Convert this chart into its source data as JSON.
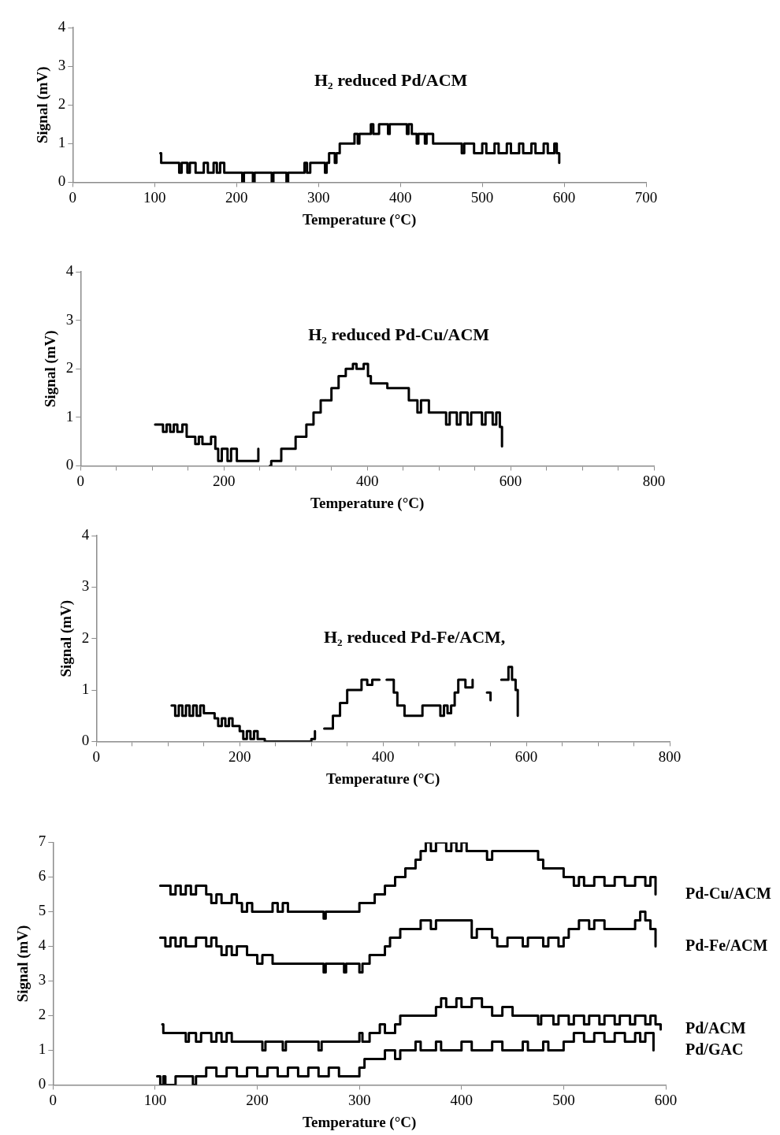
{
  "chart_data": [
    {
      "type": "step",
      "title": "H₂ reduced Pd/ACM",
      "xlabel": "Temperature (°C)",
      "ylabel": "Signal (mV)",
      "color": "#000000",
      "marker": "none",
      "grid": false,
      "legend": false,
      "xlim": [
        0,
        700
      ],
      "xticks": [
        0,
        100,
        200,
        300,
        400,
        500,
        600,
        700
      ],
      "ylim": [
        0,
        4
      ],
      "yticks": [
        0,
        1,
        2,
        3,
        4
      ],
      "x": [
        107,
        108,
        130,
        133,
        140,
        143,
        150,
        160,
        165,
        172,
        176,
        180,
        185,
        207,
        209,
        220,
        222,
        243,
        245,
        261,
        263,
        283,
        286,
        290,
        308,
        310,
        313,
        320,
        322,
        326,
        344,
        348,
        350,
        364,
        367,
        374,
        385,
        387,
        408,
        410,
        414,
        420,
        422,
        430,
        432,
        440,
        475,
        478,
        490,
        500,
        505,
        515,
        520,
        530,
        535,
        545,
        550,
        560,
        565,
        575,
        580,
        588,
        591,
        594
      ],
      "values": [
        0.75,
        0.5,
        0.25,
        0.5,
        0.25,
        0.5,
        0.25,
        0.5,
        0.25,
        0.5,
        0.25,
        0.5,
        0.25,
        0,
        0.25,
        0,
        0.25,
        0,
        0.25,
        0,
        0.25,
        0.5,
        0.25,
        0.5,
        0.25,
        0.5,
        0.75,
        0.5,
        0.75,
        1.0,
        1.25,
        1.0,
        1.25,
        1.5,
        1.25,
        1.5,
        1.25,
        1.5,
        1.25,
        1.5,
        1.25,
        1.0,
        1.25,
        1.0,
        1.25,
        1.0,
        0.75,
        1.0,
        0.75,
        1.0,
        0.75,
        1.0,
        0.75,
        1.0,
        0.75,
        1.0,
        0.75,
        1.0,
        0.75,
        1.0,
        0.75,
        1.0,
        0.75,
        0.5
      ]
    },
    {
      "type": "step",
      "title": "H₂ reduced Pd-Cu/ACM",
      "xlabel": "Temperature (°C)",
      "ylabel": "Signal (mV)",
      "color": "#000000",
      "marker": "none",
      "grid": false,
      "legend": false,
      "xlim": [
        0,
        800
      ],
      "xticks": [
        0,
        {
          "value": 50,
          "label": null
        },
        {
          "value": 100,
          "label": null
        },
        {
          "value": 150,
          "label": null
        },
        200,
        {
          "value": 250,
          "label": null
        },
        {
          "value": 300,
          "label": null
        },
        {
          "value": 350,
          "label": null
        },
        400,
        {
          "value": 450,
          "label": null
        },
        {
          "value": 500,
          "label": null
        },
        {
          "value": 550,
          "label": null
        },
        600,
        {
          "value": 650,
          "label": null
        },
        {
          "value": 700,
          "label": null
        },
        {
          "value": 750,
          "label": null
        },
        800
      ],
      "ylim": [
        0,
        4
      ],
      "yticks": [
        0,
        1,
        2,
        3,
        4
      ],
      "x": [
        104,
        115,
        120,
        125,
        130,
        135,
        142,
        148,
        160,
        165,
        170,
        182,
        188,
        192,
        197,
        205,
        210,
        218,
        240,
        248,
        250,
        264,
        266,
        268,
        280,
        291,
        300,
        315,
        325,
        335,
        350,
        360,
        370,
        380,
        385,
        395,
        401,
        405,
        428,
        432,
        458,
        463,
        470,
        475,
        486,
        510,
        515,
        525,
        530,
        540,
        545,
        560,
        565,
        575,
        580,
        585,
        588
      ],
      "values": [
        0.85,
        0.7,
        0.85,
        0.7,
        0.85,
        0.7,
        0.85,
        0.6,
        0.45,
        0.6,
        0.45,
        0.6,
        0.35,
        0.1,
        0.35,
        0.1,
        0.35,
        0.1,
        0.1,
        0.35,
        null,
        0.0,
        0.1,
        0.1,
        0.35,
        0.35,
        0.6,
        0.85,
        1.1,
        1.35,
        1.6,
        1.85,
        2.0,
        2.1,
        2.0,
        2.1,
        1.85,
        1.7,
        1.6,
        1.6,
        1.35,
        1.35,
        1.1,
        1.35,
        1.1,
        0.85,
        1.1,
        0.85,
        1.1,
        0.85,
        1.1,
        0.85,
        1.1,
        0.85,
        1.1,
        0.8,
        0.4
      ]
    },
    {
      "type": "step",
      "title": "H₂ reduced Pd-Fe/ACM,",
      "xlabel": "Temperature (°C)",
      "ylabel": "Signal (mV)",
      "color": "#000000",
      "marker": "none",
      "grid": false,
      "legend": false,
      "xlim": [
        0,
        800
      ],
      "xticks": [
        0,
        {
          "value": 50,
          "label": null
        },
        {
          "value": 100,
          "label": null
        },
        {
          "value": 150,
          "label": null
        },
        200,
        {
          "value": 250,
          "label": null
        },
        {
          "value": 300,
          "label": null
        },
        {
          "value": 350,
          "label": null
        },
        400,
        {
          "value": 450,
          "label": null
        },
        {
          "value": 500,
          "label": null
        },
        {
          "value": 550,
          "label": null
        },
        600,
        {
          "value": 650,
          "label": null
        },
        {
          "value": 700,
          "label": null
        },
        {
          "value": 750,
          "label": null
        },
        800
      ],
      "ylim": [
        0,
        4
      ],
      "yticks": [
        0,
        1,
        2,
        3,
        4
      ],
      "x": [
        105,
        110,
        115,
        120,
        125,
        130,
        135,
        140,
        145,
        150,
        165,
        170,
        175,
        180,
        185,
        190,
        200,
        205,
        210,
        215,
        220,
        225,
        235,
        240,
        280,
        290,
        300,
        305,
        310,
        318,
        330,
        340,
        350,
        360,
        370,
        378,
        385,
        395,
        400,
        405,
        415,
        420,
        430,
        450,
        455,
        480,
        485,
        490,
        495,
        500,
        505,
        515,
        525,
        530,
        545,
        550,
        555,
        565,
        575,
        580,
        585,
        588
      ],
      "values": [
        0.7,
        0.5,
        0.7,
        0.5,
        0.7,
        0.5,
        0.7,
        0.5,
        0.7,
        0.55,
        0.45,
        0.3,
        0.45,
        0.3,
        0.45,
        0.3,
        0.2,
        0.05,
        0.2,
        0.05,
        0.2,
        0.05,
        0.0,
        0.0,
        0.0,
        0.0,
        0.05,
        0.2,
        null,
        0.25,
        0.5,
        0.75,
        1.0,
        1.0,
        1.2,
        1.1,
        1.2,
        1.2,
        null,
        1.2,
        0.95,
        0.7,
        0.5,
        0.5,
        0.7,
        0.5,
        0.7,
        0.55,
        0.7,
        0.95,
        1.2,
        1.05,
        1.2,
        null,
        0.95,
        0.8,
        null,
        1.2,
        1.45,
        1.2,
        1.0,
        0.5
      ]
    },
    {
      "type": "step",
      "xlabel": "Temperature (°C)",
      "ylabel": "Signal (mV)",
      "marker": "none",
      "grid": false,
      "legend": false,
      "xlim": [
        0,
        600
      ],
      "xticks": [
        0,
        100,
        200,
        300,
        400,
        500,
        600
      ],
      "ylim": [
        0,
        7
      ],
      "yticks": [
        0,
        1,
        2,
        3,
        4,
        5,
        6,
        7
      ],
      "series": [
        {
          "name": "Pd-Cu/ACM",
          "color": "#000000",
          "x": [
            105,
            115,
            120,
            125,
            130,
            135,
            140,
            150,
            155,
            160,
            165,
            175,
            180,
            185,
            190,
            195,
            200,
            215,
            220,
            225,
            230,
            245,
            265,
            267,
            285,
            300,
            315,
            325,
            335,
            345,
            355,
            360,
            365,
            370,
            375,
            385,
            390,
            395,
            400,
            405,
            425,
            430,
            475,
            480,
            485,
            500,
            510,
            515,
            520,
            530,
            540,
            550,
            560,
            570,
            580,
            585,
            590
          ],
          "values": [
            5.75,
            5.5,
            5.75,
            5.5,
            5.75,
            5.5,
            5.75,
            5.5,
            5.25,
            5.5,
            5.25,
            5.5,
            5.25,
            5.0,
            5.25,
            5.0,
            5.0,
            5.25,
            5.0,
            5.25,
            5.0,
            5.0,
            4.8,
            5.0,
            5.0,
            5.25,
            5.5,
            5.75,
            6.0,
            6.25,
            6.5,
            6.75,
            7.0,
            6.75,
            7.0,
            6.75,
            7.0,
            6.75,
            7.0,
            6.75,
            6.5,
            6.75,
            6.5,
            6.25,
            6.25,
            6.0,
            5.75,
            6.0,
            5.75,
            6.0,
            5.75,
            6.0,
            5.75,
            6.0,
            5.75,
            6.0,
            5.5
          ]
        },
        {
          "name": "Pd-Fe/ACM",
          "color": "#000000",
          "x": [
            105,
            110,
            115,
            120,
            125,
            130,
            140,
            150,
            155,
            160,
            165,
            170,
            175,
            180,
            190,
            200,
            205,
            215,
            220,
            265,
            267,
            285,
            287,
            300,
            303,
            310,
            325,
            330,
            340,
            355,
            360,
            370,
            375,
            410,
            415,
            430,
            435,
            445,
            460,
            465,
            480,
            485,
            495,
            500,
            505,
            515,
            525,
            530,
            540,
            570,
            575,
            580,
            585,
            590
          ],
          "values": [
            4.25,
            4.0,
            4.25,
            4.0,
            4.25,
            4.0,
            4.25,
            4.0,
            4.25,
            4.0,
            3.75,
            4.0,
            3.75,
            4.0,
            3.75,
            3.5,
            3.75,
            3.5,
            3.5,
            3.25,
            3.5,
            3.25,
            3.5,
            3.25,
            3.5,
            3.75,
            4.0,
            4.25,
            4.5,
            4.5,
            4.75,
            4.5,
            4.75,
            4.25,
            4.5,
            4.25,
            4.0,
            4.25,
            4.0,
            4.25,
            4.0,
            4.25,
            4.0,
            4.25,
            4.5,
            4.75,
            4.5,
            4.75,
            4.5,
            4.75,
            5.0,
            4.75,
            4.5,
            4.0
          ]
        },
        {
          "name": "Pd/ACM",
          "color": "#000000",
          "x": [
            107,
            108,
            130,
            133,
            140,
            145,
            155,
            160,
            165,
            170,
            175,
            185,
            205,
            208,
            225,
            228,
            260,
            263,
            300,
            303,
            310,
            320,
            325,
            335,
            340,
            355,
            375,
            380,
            385,
            395,
            400,
            410,
            420,
            430,
            440,
            450,
            475,
            478,
            490,
            495,
            505,
            510,
            520,
            525,
            535,
            540,
            550,
            555,
            565,
            570,
            580,
            585,
            590,
            595
          ],
          "values": [
            1.75,
            1.5,
            1.25,
            1.5,
            1.25,
            1.5,
            1.25,
            1.5,
            1.25,
            1.5,
            1.25,
            1.25,
            1.0,
            1.25,
            1.0,
            1.25,
            1.0,
            1.25,
            1.5,
            1.25,
            1.5,
            1.75,
            1.5,
            1.75,
            2.0,
            2.0,
            2.25,
            2.5,
            2.25,
            2.5,
            2.25,
            2.5,
            2.25,
            2.0,
            2.25,
            2.0,
            1.75,
            2.0,
            1.75,
            2.0,
            1.75,
            2.0,
            1.75,
            2.0,
            1.75,
            2.0,
            1.75,
            2.0,
            1.75,
            2.0,
            1.75,
            2.0,
            1.75,
            1.6
          ]
        },
        {
          "name": "Pd/GAC",
          "color": "#000000",
          "x": [
            102,
            105,
            108,
            110,
            120,
            135,
            137,
            140,
            150,
            160,
            170,
            180,
            190,
            200,
            210,
            220,
            230,
            240,
            250,
            260,
            270,
            280,
            300,
            305,
            320,
            325,
            335,
            340,
            355,
            360,
            375,
            380,
            400,
            410,
            430,
            440,
            460,
            465,
            480,
            485,
            500,
            510,
            520,
            530,
            540,
            550,
            560,
            570,
            575,
            580,
            588
          ],
          "values": [
            0.25,
            0.0,
            0.25,
            0.0,
            0.25,
            0.25,
            0.0,
            0.25,
            0.5,
            0.25,
            0.5,
            0.25,
            0.5,
            0.25,
            0.5,
            0.25,
            0.5,
            0.25,
            0.5,
            0.25,
            0.5,
            0.25,
            0.5,
            0.75,
            0.75,
            1.0,
            0.75,
            1.0,
            1.25,
            1.0,
            1.25,
            1.0,
            1.25,
            1.0,
            1.25,
            1.0,
            1.25,
            1.0,
            1.25,
            1.0,
            1.25,
            1.5,
            1.25,
            1.5,
            1.25,
            1.5,
            1.25,
            1.5,
            1.25,
            1.5,
            1.0
          ]
        }
      ]
    }
  ]
}
